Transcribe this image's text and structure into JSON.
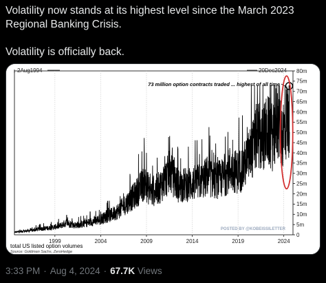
{
  "tweet": {
    "text_line1": "Volatility now stands at its highest level since the March 2023 Regional Banking Crisis.",
    "text_line2": "Volatility is officially back."
  },
  "meta": {
    "time": "3:33 PM",
    "separator": "·",
    "date": "Aug 4, 2024",
    "views_count": "67.7K",
    "views_label": "Views"
  },
  "chart_data": {
    "type": "line",
    "title": "",
    "start_label": "2Aug1994",
    "end_label": "20Dec2024",
    "annotation": "73 million option contracts traded ... highest of all time",
    "bottom_label": "total US listed option volumes",
    "source": "Source: Goldman Sachs, ZeroHedge",
    "watermark": "POSTED BY @KOBEISSILETTER",
    "x_ticks": [
      "1999",
      "2004",
      "2009",
      "2014",
      "2019",
      "2024"
    ],
    "x_tick_years": [
      1999,
      2004,
      2009,
      2014,
      2019,
      2024
    ],
    "y_ticks": [
      "0",
      "5m",
      "10m",
      "15m",
      "20m",
      "25m",
      "30m",
      "35m",
      "40m",
      "45m",
      "50m",
      "55m",
      "60m",
      "65m",
      "70m",
      "75m",
      "80m"
    ],
    "xlim": [
      1994.58,
      2025.0
    ],
    "ylim": [
      0,
      80
    ],
    "y_unit": "million contracts",
    "peak_value": 73,
    "highlight_color": "#d32f2f",
    "line_color": "#000000",
    "points": [
      [
        1994.6,
        1.5
      ],
      [
        1995.5,
        2
      ],
      [
        1996.5,
        2.5
      ],
      [
        1997.5,
        3.5
      ],
      [
        1998.5,
        4
      ],
      [
        1999.5,
        5
      ],
      [
        2000.3,
        7
      ],
      [
        2001.0,
        5.5
      ],
      [
        2002.0,
        6
      ],
      [
        2003.0,
        7.5
      ],
      [
        2004.0,
        9
      ],
      [
        2005.0,
        11
      ],
      [
        2006.0,
        14
      ],
      [
        2006.8,
        18
      ],
      [
        2007.6,
        22
      ],
      [
        2008.2,
        26
      ],
      [
        2008.8,
        30
      ],
      [
        2009.5,
        24
      ],
      [
        2010.4,
        27
      ],
      [
        2011.2,
        33
      ],
      [
        2011.6,
        36
      ],
      [
        2012.5,
        28
      ],
      [
        2013.5,
        29
      ],
      [
        2014.5,
        30
      ],
      [
        2015.2,
        31
      ],
      [
        2015.6,
        34
      ],
      [
        2016.5,
        31
      ],
      [
        2017.5,
        33
      ],
      [
        2018.1,
        38
      ],
      [
        2018.9,
        36
      ],
      [
        2019.5,
        38
      ],
      [
        2020.2,
        45
      ],
      [
        2020.7,
        50
      ],
      [
        2021.1,
        58
      ],
      [
        2021.6,
        54
      ],
      [
        2022.2,
        60
      ],
      [
        2022.9,
        55
      ],
      [
        2023.2,
        66
      ],
      [
        2023.7,
        58
      ],
      [
        2024.1,
        60
      ],
      [
        2024.58,
        73
      ],
      [
        2024.9,
        62
      ]
    ]
  }
}
